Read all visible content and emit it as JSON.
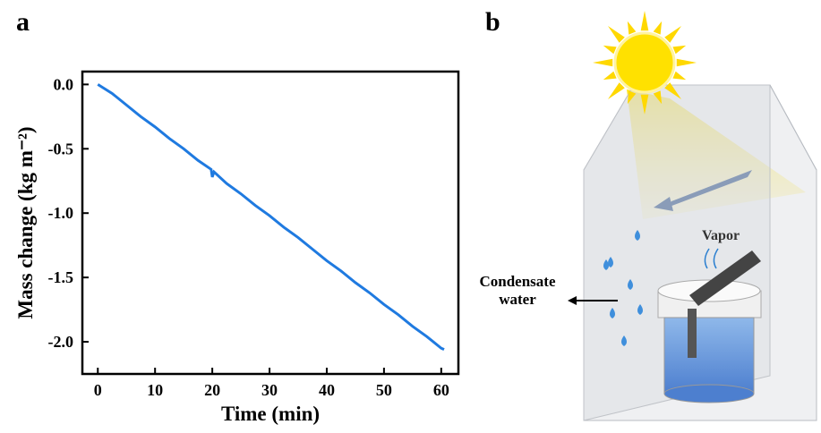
{
  "panel_labels": [
    "a",
    "b"
  ],
  "chart_data": {
    "type": "line",
    "x_label": "Time (min)",
    "y_label": "Mass change (kg m⁻²)",
    "series": [
      {
        "color": "#1f7ae0",
        "x": [
          0,
          2.5,
          5,
          7.5,
          10,
          12.5,
          15,
          17.5,
          19.8,
          20,
          20.3,
          22.5,
          25,
          27.5,
          30,
          32.5,
          35,
          37.5,
          40,
          42.5,
          45,
          47.5,
          50,
          52.5,
          55,
          57.5,
          60,
          60.5
        ],
        "values": [
          0,
          -0.07,
          -0.16,
          -0.25,
          -0.33,
          -0.42,
          -0.5,
          -0.59,
          -0.66,
          -0.72,
          -0.68,
          -0.77,
          -0.85,
          -0.94,
          -1.02,
          -1.11,
          -1.19,
          -1.28,
          -1.37,
          -1.45,
          -1.54,
          -1.62,
          -1.71,
          -1.79,
          -1.88,
          -1.96,
          -2.05,
          -2.06
        ]
      }
    ],
    "xlim": [
      -2.7,
      63
    ],
    "xticks": [
      0,
      10,
      20,
      30,
      40,
      50,
      60
    ],
    "ylim": [
      -2.25,
      0.1
    ],
    "yticks": [
      {
        "value": 0,
        "label": "0.0"
      },
      -0.5,
      {
        "value": -1,
        "label": "-1.0"
      },
      -1.5,
      {
        "value": -2,
        "label": "-2.0"
      }
    ]
  },
  "diagram": {
    "vapor": "Vapor",
    "condensate": [
      "Condensate",
      "water"
    ]
  }
}
